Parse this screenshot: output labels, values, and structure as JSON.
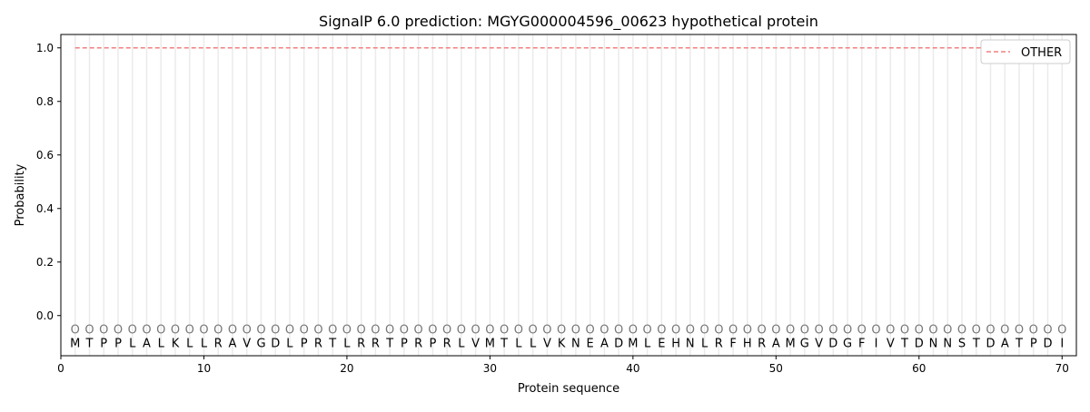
{
  "chart_data": {
    "type": "line",
    "title": "SignalP 6.0 prediction: MGYG000004596_00623 hypothetical protein",
    "xlabel": "Protein sequence",
    "ylabel": "Probability",
    "xlim": [
      0,
      71
    ],
    "ylim": [
      -0.15,
      1.05
    ],
    "xticks": [
      0,
      10,
      20,
      30,
      40,
      50,
      60,
      70
    ],
    "yticks": [
      0.0,
      0.2,
      0.4,
      0.6,
      0.8,
      1.0
    ],
    "yticklabels": [
      "0.0",
      "0.2",
      "0.4",
      "0.6",
      "0.8",
      "1.0"
    ],
    "sequence": "MTPPLALKLLRAVGDLPRTLRRTPRPRLVMTLLVKNEADMLEHNLRFHRAMGVDGFIVTDNNSTDATPDI",
    "position_labels": "O",
    "series": [
      {
        "name": "OTHER",
        "color": "#f08080",
        "style": "dashed",
        "x_range": [
          1,
          70
        ],
        "value": 1.0
      }
    ],
    "legend_position": "top-right",
    "grid": "vertical lines at each residue"
  }
}
